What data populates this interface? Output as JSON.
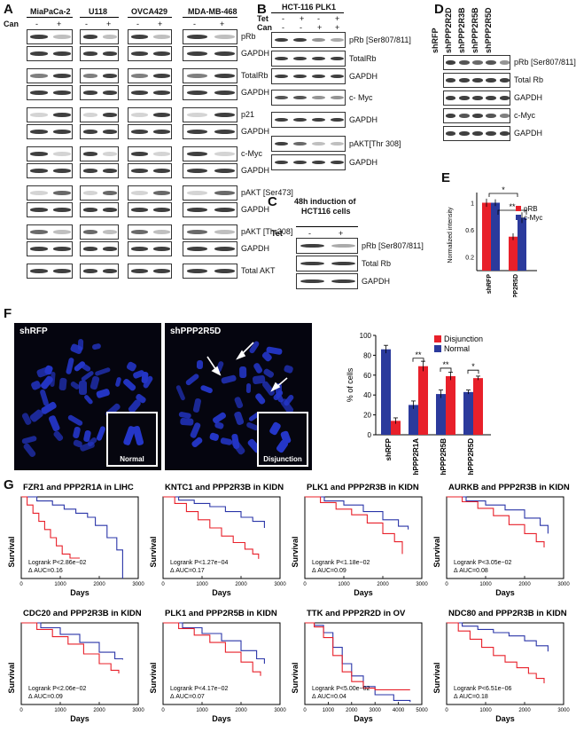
{
  "panels": {
    "A": {
      "letter": "A",
      "cells": [
        "MiaPaCa-2",
        "U118",
        "OVCA429",
        "MDA-MB-468"
      ],
      "can_label": "Can",
      "minus": "-",
      "plus": "+",
      "rows": [
        "pRb",
        "GAPDH",
        "TotalRb",
        "GAPDH",
        "p21",
        "GAPDH",
        "c-Myc",
        "GAPDH",
        "pAKT [Ser473]",
        "GAPDH",
        "pAKT [Thr308]",
        "GAPDH",
        "Total AKT"
      ]
    },
    "B": {
      "letter": "B",
      "title": "HCT-116 PLK1",
      "tet": "Tet",
      "can": "Can",
      "tet_signs": [
        "-",
        "+",
        "-",
        "+"
      ],
      "can_signs": [
        "-",
        "-",
        "+",
        "+"
      ],
      "rows": [
        "pRb [Ser807/811]",
        "TotalRb",
        "GAPDH",
        "c- Myc",
        "GAPDH",
        "pAKT[Thr 308]",
        "GAPDH"
      ]
    },
    "C": {
      "letter": "C",
      "title_line1": "48h induction of",
      "title_line2": "HCT116 cells",
      "tet": "Tet",
      "signs": [
        "-",
        "+"
      ],
      "rows": [
        "pRb [Ser807/811]",
        "Total Rb",
        "GAPDH"
      ]
    },
    "D": {
      "letter": "D",
      "lanes": [
        "shRFP",
        "shPPP2R2D",
        "shPPP2R3B",
        "shPPP2R5B",
        "shPPP2R5D"
      ],
      "rows": [
        "pRb [Ser807/811]",
        "Total Rb",
        "GAPDH",
        "c-Myc",
        "GAPDH"
      ]
    },
    "E": {
      "letter": "E",
      "ylabel": "Normalized intensity",
      "legend": [
        "pRB",
        "c-Myc"
      ],
      "sig1": "*",
      "sig2": "**"
    },
    "F": {
      "letter": "F",
      "image_labels": [
        "shRFP",
        "shPPP2R5D"
      ],
      "inset_labels": [
        "Normal",
        "Disjunction"
      ],
      "ylabel": "% of cells",
      "legend": [
        "Disjunction",
        "Normal"
      ],
      "sig": [
        "**",
        "**",
        "*"
      ]
    },
    "G": {
      "letter": "G",
      "xlabel": "Days",
      "ylabel": "Survival"
    }
  },
  "colors": {
    "red": "#e8202a",
    "blue": "#2b3a9c",
    "km_red": "#e8202a",
    "km_blue": "#2a35a8"
  },
  "chart_data": [
    {
      "type": "bar",
      "panel": "E",
      "categories": [
        "shRFP",
        "shPPP2R5D"
      ],
      "series": [
        {
          "name": "pRB",
          "values": [
            1.0,
            0.5
          ]
        },
        {
          "name": "c-Myc",
          "values": [
            1.0,
            0.78
          ]
        }
      ],
      "ylabel": "Normalized intensity",
      "yticks": [
        "0.2",
        "0.6",
        "1"
      ],
      "ylim": [
        0,
        1.15
      ]
    },
    {
      "type": "bar",
      "panel": "F",
      "categories": [
        "shRFP",
        "shPPP2R1A",
        "shPPP2R5B",
        "shPPP2R5D"
      ],
      "series": [
        {
          "name": "Disjunction",
          "values": [
            14,
            69,
            59,
            57
          ]
        },
        {
          "name": "Normal",
          "values": [
            86,
            30,
            41,
            43
          ]
        }
      ],
      "ylabel": "% of cells",
      "yticks": [
        "0",
        "20",
        "40",
        "60",
        "80",
        "100"
      ],
      "ylim": [
        0,
        100
      ]
    },
    {
      "type": "line",
      "panel": "G",
      "plots": [
        {
          "title": "FZR1 and PPP2R1A in LIHC",
          "p": "Logrank P<2.86e−02",
          "auc": "Δ AUC=0.16",
          "xmax": 3000,
          "xticks": [
            "0",
            "1000",
            "2000",
            "3000"
          ],
          "red": [
            [
              0,
              1
            ],
            [
              150,
              0.9
            ],
            [
              300,
              0.8
            ],
            [
              450,
              0.7
            ],
            [
              600,
              0.6
            ],
            [
              750,
              0.5
            ],
            [
              900,
              0.4
            ],
            [
              1050,
              0.3
            ],
            [
              1250,
              0.25
            ],
            [
              1500,
              0.25
            ]
          ],
          "blue": [
            [
              0,
              1
            ],
            [
              400,
              0.95
            ],
            [
              800,
              0.9
            ],
            [
              1100,
              0.85
            ],
            [
              1400,
              0.8
            ],
            [
              1700,
              0.75
            ],
            [
              1900,
              0.65
            ],
            [
              2200,
              0.5
            ],
            [
              2450,
              0.35
            ],
            [
              2600,
              0.0
            ]
          ]
        },
        {
          "title": "KNTC1 and PPP2R3B in KIDN",
          "p": "Logrank P<1.27e−04",
          "auc": "Δ AUC=0.17",
          "xmax": 3000,
          "xticks": [
            "0",
            "1000",
            "2000",
            "3000"
          ],
          "red": [
            [
              0,
              1
            ],
            [
              300,
              0.92
            ],
            [
              600,
              0.82
            ],
            [
              900,
              0.72
            ],
            [
              1200,
              0.62
            ],
            [
              1500,
              0.52
            ],
            [
              1800,
              0.44
            ],
            [
              2100,
              0.36
            ],
            [
              2300,
              0.3
            ],
            [
              2450,
              0.24
            ]
          ],
          "blue": [
            [
              0,
              1
            ],
            [
              400,
              0.96
            ],
            [
              800,
              0.92
            ],
            [
              1200,
              0.88
            ],
            [
              1600,
              0.82
            ],
            [
              2000,
              0.75
            ],
            [
              2300,
              0.7
            ],
            [
              2600,
              0.62
            ]
          ]
        },
        {
          "title": "PLK1 and PPP2R3B in KIDN",
          "p": "Logrank P<1.18e−02",
          "auc": "Δ AUC=0.09",
          "xmax": 3000,
          "xticks": [
            "0",
            "1000",
            "2000",
            "3000"
          ],
          "red": [
            [
              0,
              1
            ],
            [
              400,
              0.93
            ],
            [
              800,
              0.85
            ],
            [
              1200,
              0.78
            ],
            [
              1600,
              0.68
            ],
            [
              2000,
              0.55
            ],
            [
              2300,
              0.45
            ],
            [
              2500,
              0.3
            ]
          ],
          "blue": [
            [
              0,
              1
            ],
            [
              500,
              0.95
            ],
            [
              1000,
              0.9
            ],
            [
              1500,
              0.82
            ],
            [
              2000,
              0.72
            ],
            [
              2400,
              0.64
            ],
            [
              2650,
              0.6
            ]
          ]
        },
        {
          "title": "AURKB and PPP2R3B in KIDN",
          "p": "Logrank P<3.05e−02",
          "auc": "Δ AUC=0.08",
          "xmax": 3000,
          "xticks": [
            "0",
            "1000",
            "2000",
            "3000"
          ],
          "red": [
            [
              0,
              1
            ],
            [
              400,
              0.94
            ],
            [
              800,
              0.86
            ],
            [
              1200,
              0.77
            ],
            [
              1600,
              0.66
            ],
            [
              2000,
              0.55
            ],
            [
              2300,
              0.45
            ],
            [
              2500,
              0.38
            ]
          ],
          "blue": [
            [
              0,
              1
            ],
            [
              500,
              0.95
            ],
            [
              1000,
              0.9
            ],
            [
              1500,
              0.84
            ],
            [
              2000,
              0.74
            ],
            [
              2400,
              0.65
            ],
            [
              2600,
              0.55
            ]
          ]
        },
        {
          "title": "CDC20 and PPP2R3B in KIDN",
          "p": "Logrank P<2.06e−02",
          "auc": "Δ AUC=0.09",
          "xmax": 3000,
          "xticks": [
            "0",
            "1000",
            "2000",
            "3000"
          ],
          "red": [
            [
              0,
              1
            ],
            [
              400,
              0.92
            ],
            [
              800,
              0.83
            ],
            [
              1200,
              0.74
            ],
            [
              1600,
              0.62
            ],
            [
              2000,
              0.5
            ],
            [
              2300,
              0.42
            ],
            [
              2500,
              0.38
            ]
          ],
          "blue": [
            [
              0,
              1
            ],
            [
              500,
              0.94
            ],
            [
              1000,
              0.86
            ],
            [
              1500,
              0.76
            ],
            [
              2000,
              0.64
            ],
            [
              2400,
              0.56
            ],
            [
              2600,
              0.55
            ]
          ]
        },
        {
          "title": "PLK1 and PPP2R5B in KIDN",
          "p": "Logrank P<4.17e−02",
          "auc": "Δ AUC=0.07",
          "xmax": 3000,
          "xticks": [
            "0",
            "1000",
            "2000",
            "3000"
          ],
          "red": [
            [
              0,
              1
            ],
            [
              400,
              0.93
            ],
            [
              800,
              0.85
            ],
            [
              1200,
              0.76
            ],
            [
              1600,
              0.64
            ],
            [
              2000,
              0.52
            ],
            [
              2300,
              0.4
            ],
            [
              2500,
              0.35
            ]
          ],
          "blue": [
            [
              0,
              1
            ],
            [
              500,
              0.94
            ],
            [
              1000,
              0.87
            ],
            [
              1500,
              0.78
            ],
            [
              2000,
              0.66
            ],
            [
              2400,
              0.56
            ],
            [
              2600,
              0.5
            ]
          ]
        },
        {
          "title": "TTK and PPP2R2D in OV",
          "p": "Logrank P<5.00e−02",
          "auc": "Δ AUC=0.04",
          "xmax": 5000,
          "xticks": [
            "0",
            "1000",
            "2000",
            "3000",
            "4000",
            "5000"
          ],
          "red": [
            [
              0,
              1
            ],
            [
              400,
              0.95
            ],
            [
              800,
              0.82
            ],
            [
              1200,
              0.6
            ],
            [
              1600,
              0.4
            ],
            [
              2000,
              0.28
            ],
            [
              2500,
              0.2
            ],
            [
              3000,
              0.18
            ],
            [
              3500,
              0.18
            ],
            [
              4500,
              0.18
            ]
          ],
          "blue": [
            [
              0,
              1
            ],
            [
              400,
              0.97
            ],
            [
              800,
              0.88
            ],
            [
              1200,
              0.7
            ],
            [
              1600,
              0.5
            ],
            [
              2000,
              0.35
            ],
            [
              2500,
              0.22
            ],
            [
              3000,
              0.12
            ],
            [
              3800,
              0.05
            ],
            [
              4500,
              0.03
            ]
          ]
        },
        {
          "title": "NDC80 and PPP2R3B in KIDN",
          "p": "Logrank P<6.51e−06",
          "auc": "Δ AUC=0.18",
          "xmax": 3000,
          "xticks": [
            "0",
            "1000",
            "2000",
            "3000"
          ],
          "red": [
            [
              0,
              1
            ],
            [
              300,
              0.9
            ],
            [
              600,
              0.8
            ],
            [
              900,
              0.7
            ],
            [
              1200,
              0.6
            ],
            [
              1500,
              0.52
            ],
            [
              1800,
              0.45
            ],
            [
              2100,
              0.38
            ],
            [
              2300,
              0.32
            ],
            [
              2500,
              0.26
            ]
          ],
          "blue": [
            [
              0,
              1
            ],
            [
              400,
              0.96
            ],
            [
              800,
              0.92
            ],
            [
              1200,
              0.88
            ],
            [
              1600,
              0.84
            ],
            [
              2000,
              0.78
            ],
            [
              2300,
              0.72
            ],
            [
              2600,
              0.65
            ]
          ]
        }
      ]
    }
  ]
}
